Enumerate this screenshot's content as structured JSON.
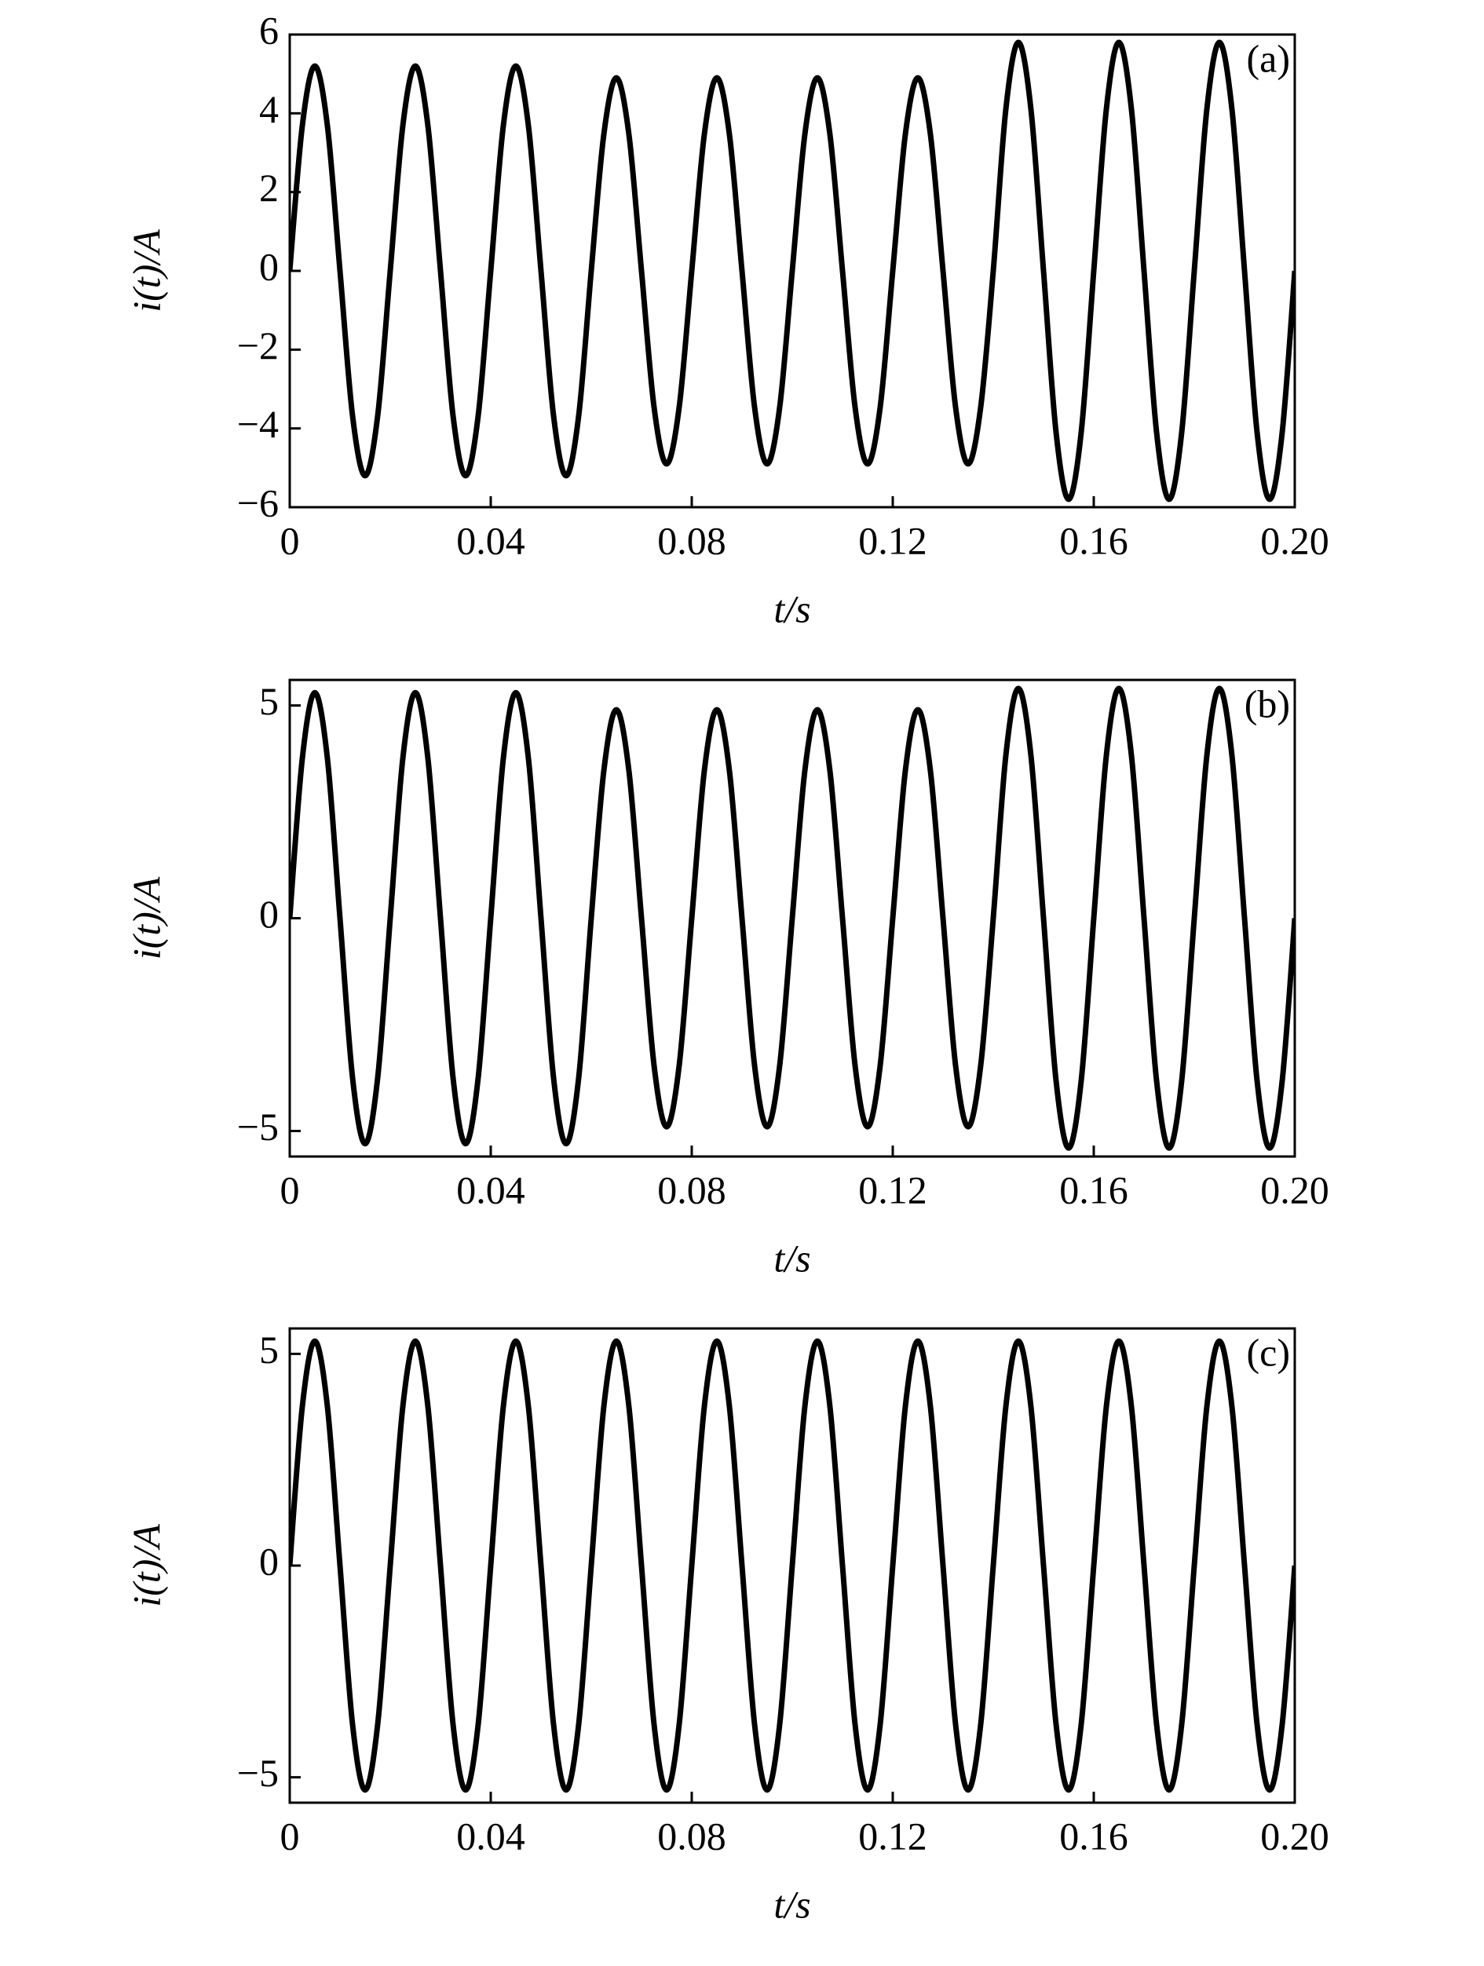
{
  "chart_data": [
    {
      "type": "line",
      "annotation": "(a)",
      "xlabel": "t/s",
      "ylabel": "i(t)/A",
      "color": "#000000",
      "x": [
        0,
        0.0025,
        0.005,
        0.0075,
        0.01,
        0.0125,
        0.015,
        0.0175,
        0.02,
        0.0225,
        0.025,
        0.0275,
        0.03,
        0.0325,
        0.035,
        0.0375,
        0.04,
        0.0425,
        0.045,
        0.0475,
        0.05,
        0.0525,
        0.055,
        0.0575,
        0.06,
        0.0625,
        0.065,
        0.0675,
        0.07,
        0.0725,
        0.075,
        0.0775,
        0.08,
        0.0825,
        0.085,
        0.0875,
        0.09,
        0.0925,
        0.095,
        0.0975,
        0.1,
        0.1025,
        0.105,
        0.1075,
        0.11,
        0.1125,
        0.115,
        0.1175,
        0.12,
        0.1225,
        0.125,
        0.1275,
        0.13,
        0.1325,
        0.135,
        0.1375,
        0.14,
        0.1425,
        0.145,
        0.1475,
        0.15,
        0.1525,
        0.155,
        0.1575,
        0.16,
        0.1625,
        0.165,
        0.1675,
        0.17,
        0.1725,
        0.175,
        0.1775,
        0.18,
        0.1825,
        0.185,
        0.1875,
        0.19,
        0.1925,
        0.195,
        0.1975,
        0.2
      ],
      "values": [
        0,
        3.68,
        5.2,
        3.68,
        0,
        -3.68,
        -5.2,
        -3.68,
        0,
        3.68,
        5.2,
        3.68,
        0,
        -3.68,
        -5.2,
        -3.68,
        0,
        3.68,
        5.2,
        3.68,
        0,
        -3.68,
        -5.2,
        -3.68,
        0,
        3.46,
        4.9,
        3.46,
        0,
        -3.46,
        -4.9,
        -3.46,
        0,
        3.46,
        4.9,
        3.46,
        0,
        -3.46,
        -4.9,
        -3.46,
        0,
        3.46,
        4.9,
        3.46,
        0,
        -3.46,
        -4.9,
        -3.46,
        0,
        3.46,
        4.9,
        3.46,
        0,
        -3.46,
        -4.9,
        -3.46,
        0,
        4.1,
        5.8,
        4.1,
        0,
        -4.1,
        -5.8,
        -4.1,
        0,
        4.1,
        5.8,
        4.1,
        0,
        -4.1,
        -5.8,
        -4.1,
        0,
        4.1,
        5.8,
        4.1,
        0,
        -4.1,
        -5.8,
        -4.1,
        0
      ],
      "xlim": [
        0,
        0.2
      ],
      "xticks": [
        0,
        0.04,
        0.08,
        0.12,
        0.16,
        {
          "value": 0.2,
          "label": "0.20"
        }
      ],
      "ylim": [
        -6,
        6
      ],
      "yticks": [
        {
          "value": -6,
          "label": "−6"
        },
        {
          "value": -4,
          "label": "−4"
        },
        {
          "value": -2,
          "label": "−2"
        },
        0,
        2,
        4,
        6
      ]
    },
    {
      "type": "line",
      "annotation": "(b)",
      "xlabel": "t/s",
      "ylabel": "i(t)/A",
      "color": "#000000",
      "x": [
        0,
        0.0025,
        0.005,
        0.0075,
        0.01,
        0.0125,
        0.015,
        0.0175,
        0.02,
        0.0225,
        0.025,
        0.0275,
        0.03,
        0.0325,
        0.035,
        0.0375,
        0.04,
        0.0425,
        0.045,
        0.0475,
        0.05,
        0.0525,
        0.055,
        0.0575,
        0.06,
        0.0625,
        0.065,
        0.0675,
        0.07,
        0.0725,
        0.075,
        0.0775,
        0.08,
        0.0825,
        0.085,
        0.0875,
        0.09,
        0.0925,
        0.095,
        0.0975,
        0.1,
        0.1025,
        0.105,
        0.1075,
        0.11,
        0.1125,
        0.115,
        0.1175,
        0.12,
        0.1225,
        0.125,
        0.1275,
        0.13,
        0.1325,
        0.135,
        0.1375,
        0.14,
        0.1425,
        0.145,
        0.1475,
        0.15,
        0.1525,
        0.155,
        0.1575,
        0.16,
        0.1625,
        0.165,
        0.1675,
        0.17,
        0.1725,
        0.175,
        0.1775,
        0.18,
        0.1825,
        0.185,
        0.1875,
        0.19,
        0.1925,
        0.195,
        0.1975,
        0.2
      ],
      "values": [
        0,
        3.75,
        5.3,
        3.75,
        0,
        -3.75,
        -5.3,
        -3.75,
        0,
        3.75,
        5.3,
        3.75,
        0,
        -3.75,
        -5.3,
        -3.75,
        0,
        3.75,
        5.3,
        3.75,
        0,
        -3.75,
        -5.3,
        -3.75,
        0,
        3.46,
        4.9,
        3.46,
        0,
        -3.46,
        -4.9,
        -3.46,
        0,
        3.46,
        4.9,
        3.46,
        0,
        -3.46,
        -4.9,
        -3.46,
        0,
        3.46,
        4.9,
        3.46,
        0,
        -3.46,
        -4.9,
        -3.46,
        0,
        3.46,
        4.9,
        3.46,
        0,
        -3.46,
        -4.9,
        -3.46,
        0,
        3.82,
        5.4,
        3.82,
        0,
        -3.82,
        -5.4,
        -3.82,
        0,
        3.82,
        5.4,
        3.82,
        0,
        -3.82,
        -5.4,
        -3.82,
        0,
        3.82,
        5.4,
        3.82,
        0,
        -3.82,
        -5.4,
        -3.82,
        0
      ],
      "xlim": [
        0,
        0.2
      ],
      "xticks": [
        0,
        0.04,
        0.08,
        0.12,
        0.16,
        {
          "value": 0.2,
          "label": "0.20"
        }
      ],
      "ylim": [
        -5.6,
        5.6
      ],
      "yticks": [
        {
          "value": -5,
          "label": "−5"
        },
        0,
        5
      ]
    },
    {
      "type": "line",
      "annotation": "(c)",
      "xlabel": "t/s",
      "ylabel": "i(t)/A",
      "color": "#000000",
      "x": [
        0,
        0.0025,
        0.005,
        0.0075,
        0.01,
        0.0125,
        0.015,
        0.0175,
        0.02,
        0.0225,
        0.025,
        0.0275,
        0.03,
        0.0325,
        0.035,
        0.0375,
        0.04,
        0.0425,
        0.045,
        0.0475,
        0.05,
        0.0525,
        0.055,
        0.0575,
        0.06,
        0.0625,
        0.065,
        0.0675,
        0.07,
        0.0725,
        0.075,
        0.0775,
        0.08,
        0.0825,
        0.085,
        0.0875,
        0.09,
        0.0925,
        0.095,
        0.0975,
        0.1,
        0.1025,
        0.105,
        0.1075,
        0.11,
        0.1125,
        0.115,
        0.1175,
        0.12,
        0.1225,
        0.125,
        0.1275,
        0.13,
        0.1325,
        0.135,
        0.1375,
        0.14,
        0.1425,
        0.145,
        0.1475,
        0.15,
        0.1525,
        0.155,
        0.1575,
        0.16,
        0.1625,
        0.165,
        0.1675,
        0.17,
        0.1725,
        0.175,
        0.1775,
        0.18,
        0.1825,
        0.185,
        0.1875,
        0.19,
        0.1925,
        0.195,
        0.1975,
        0.2
      ],
      "values": [
        0,
        3.75,
        5.3,
        3.75,
        0,
        -3.75,
        -5.3,
        -3.75,
        0,
        3.75,
        5.3,
        3.75,
        0,
        -3.75,
        -5.3,
        -3.75,
        0,
        3.75,
        5.3,
        3.75,
        0,
        -3.75,
        -5.3,
        -3.75,
        0,
        3.75,
        5.3,
        3.75,
        0,
        -3.75,
        -5.3,
        -3.75,
        0,
        3.75,
        5.3,
        3.75,
        0,
        -3.75,
        -5.3,
        -3.75,
        0,
        3.75,
        5.3,
        3.75,
        0,
        -3.75,
        -5.3,
        -3.75,
        0,
        3.75,
        5.3,
        3.75,
        0,
        -3.75,
        -5.3,
        -3.75,
        0,
        3.75,
        5.3,
        3.75,
        0,
        -3.75,
        -5.3,
        -3.75,
        0,
        3.75,
        5.3,
        3.75,
        0,
        -3.75,
        -5.3,
        -3.75,
        0,
        3.75,
        5.3,
        3.75,
        0,
        -3.75,
        -5.3,
        -3.75,
        0
      ],
      "xlim": [
        0,
        0.2
      ],
      "xticks": [
        0,
        0.04,
        0.08,
        0.12,
        0.16,
        {
          "value": 0.2,
          "label": "0.20"
        }
      ],
      "ylim": [
        -5.6,
        5.6
      ],
      "yticks": [
        {
          "value": -5,
          "label": "−5"
        },
        0,
        5
      ]
    }
  ]
}
